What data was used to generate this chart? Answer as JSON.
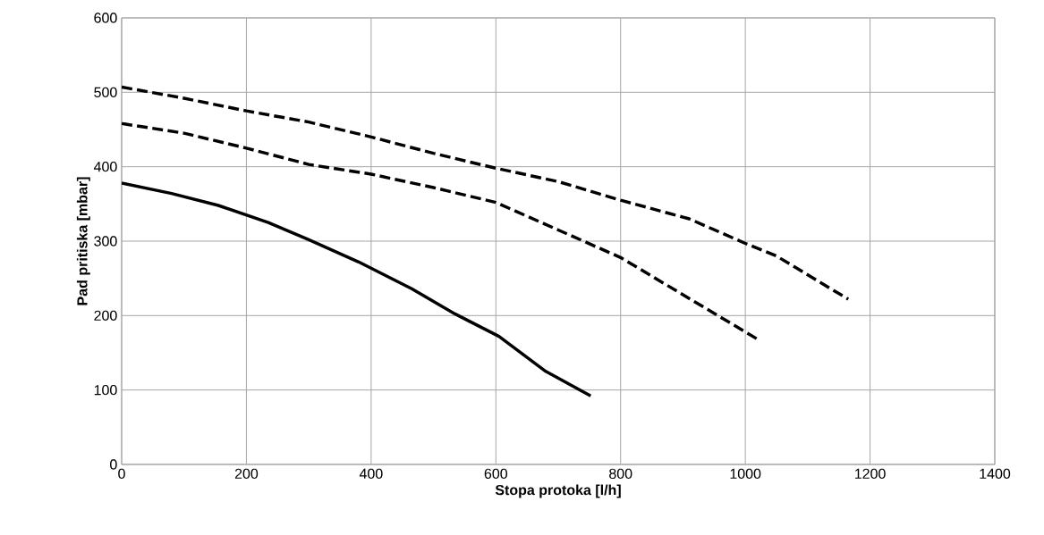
{
  "chart_data": {
    "type": "line",
    "xlabel": "Stopa protoka [l/h]",
    "ylabel": "Pad pritiska [mbar]",
    "xlim": [
      0,
      1400
    ],
    "xticks": [
      0,
      200,
      400,
      600,
      800,
      1000,
      1200,
      1400
    ],
    "ylim": [
      0,
      600
    ],
    "yticks": [
      0,
      100,
      200,
      300,
      400,
      500,
      600
    ],
    "grid": true,
    "marker": "none",
    "series": [
      {
        "color": "#000000",
        "line_style": "solid",
        "x": [
          0,
          80,
          155,
          235,
          300,
          380,
          465,
          535,
          605,
          680,
          752
        ],
        "values": [
          378,
          364,
          348,
          325,
          302,
          272,
          236,
          202,
          172,
          125,
          92
        ]
      },
      {
        "color": "#000000",
        "line_style": "dashed",
        "x": [
          0,
          100,
          200,
          300,
          400,
          500,
          600,
          700,
          800,
          900,
          1020
        ],
        "values": [
          458,
          445,
          425,
          403,
          390,
          372,
          352,
          315,
          278,
          228,
          168
        ]
      },
      {
        "color": "#000000",
        "line_style": "dashed",
        "x": [
          0,
          100,
          200,
          300,
          400,
          500,
          600,
          700,
          800,
          910,
          1000,
          1050,
          1165
        ],
        "values": [
          507,
          492,
          475,
          460,
          440,
          418,
          398,
          380,
          355,
          330,
          297,
          280,
          222
        ]
      }
    ]
  }
}
